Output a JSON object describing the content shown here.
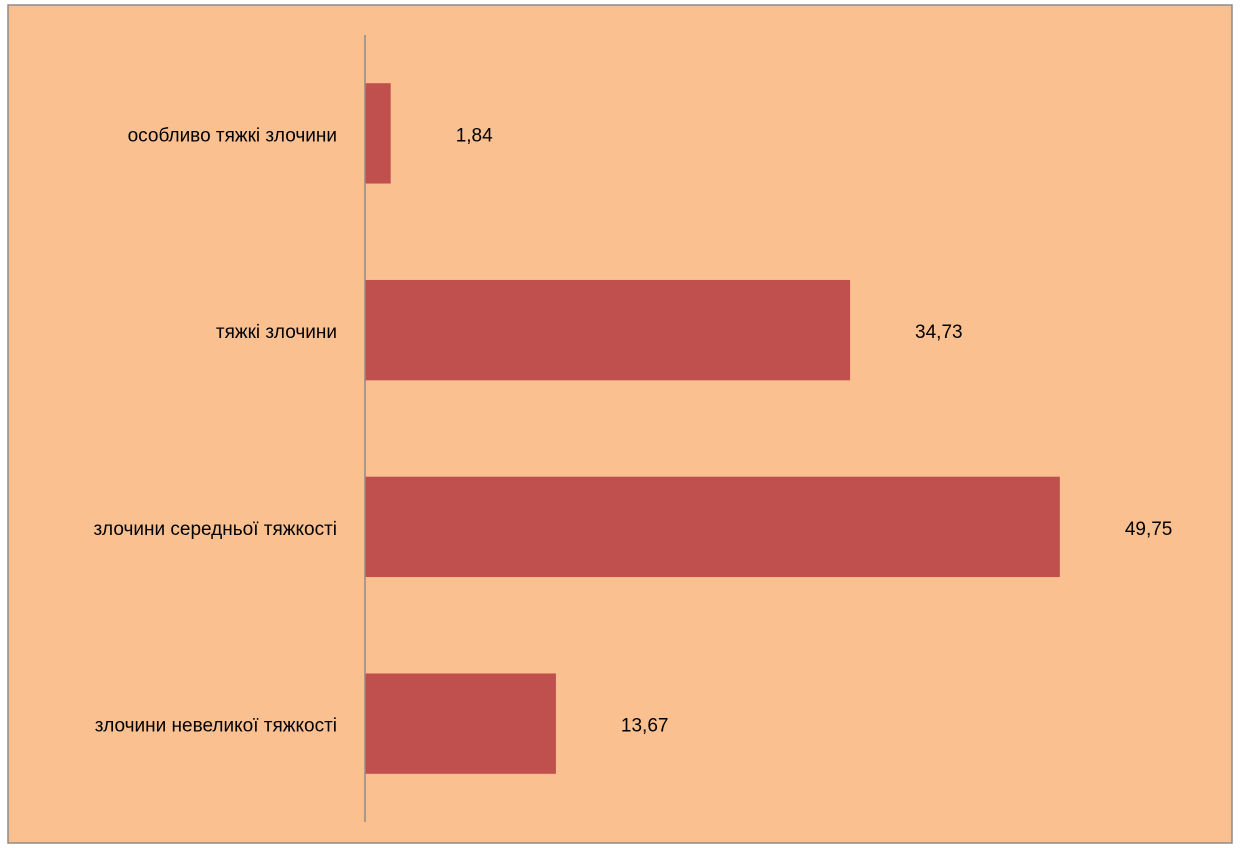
{
  "chart_data": {
    "type": "bar",
    "orientation": "horizontal",
    "categories": [
      "особливо тяжкі злочини",
      "тяжкі злочини",
      "злочини середньої тяжкості",
      "злочини невеликої тяжкості"
    ],
    "values": [
      1.84,
      34.73,
      49.75,
      13.67
    ],
    "value_labels": [
      "1,84",
      "34,73",
      "49,75",
      "13,67"
    ],
    "color": "#c0504d",
    "xlim": [
      0,
      60
    ]
  }
}
